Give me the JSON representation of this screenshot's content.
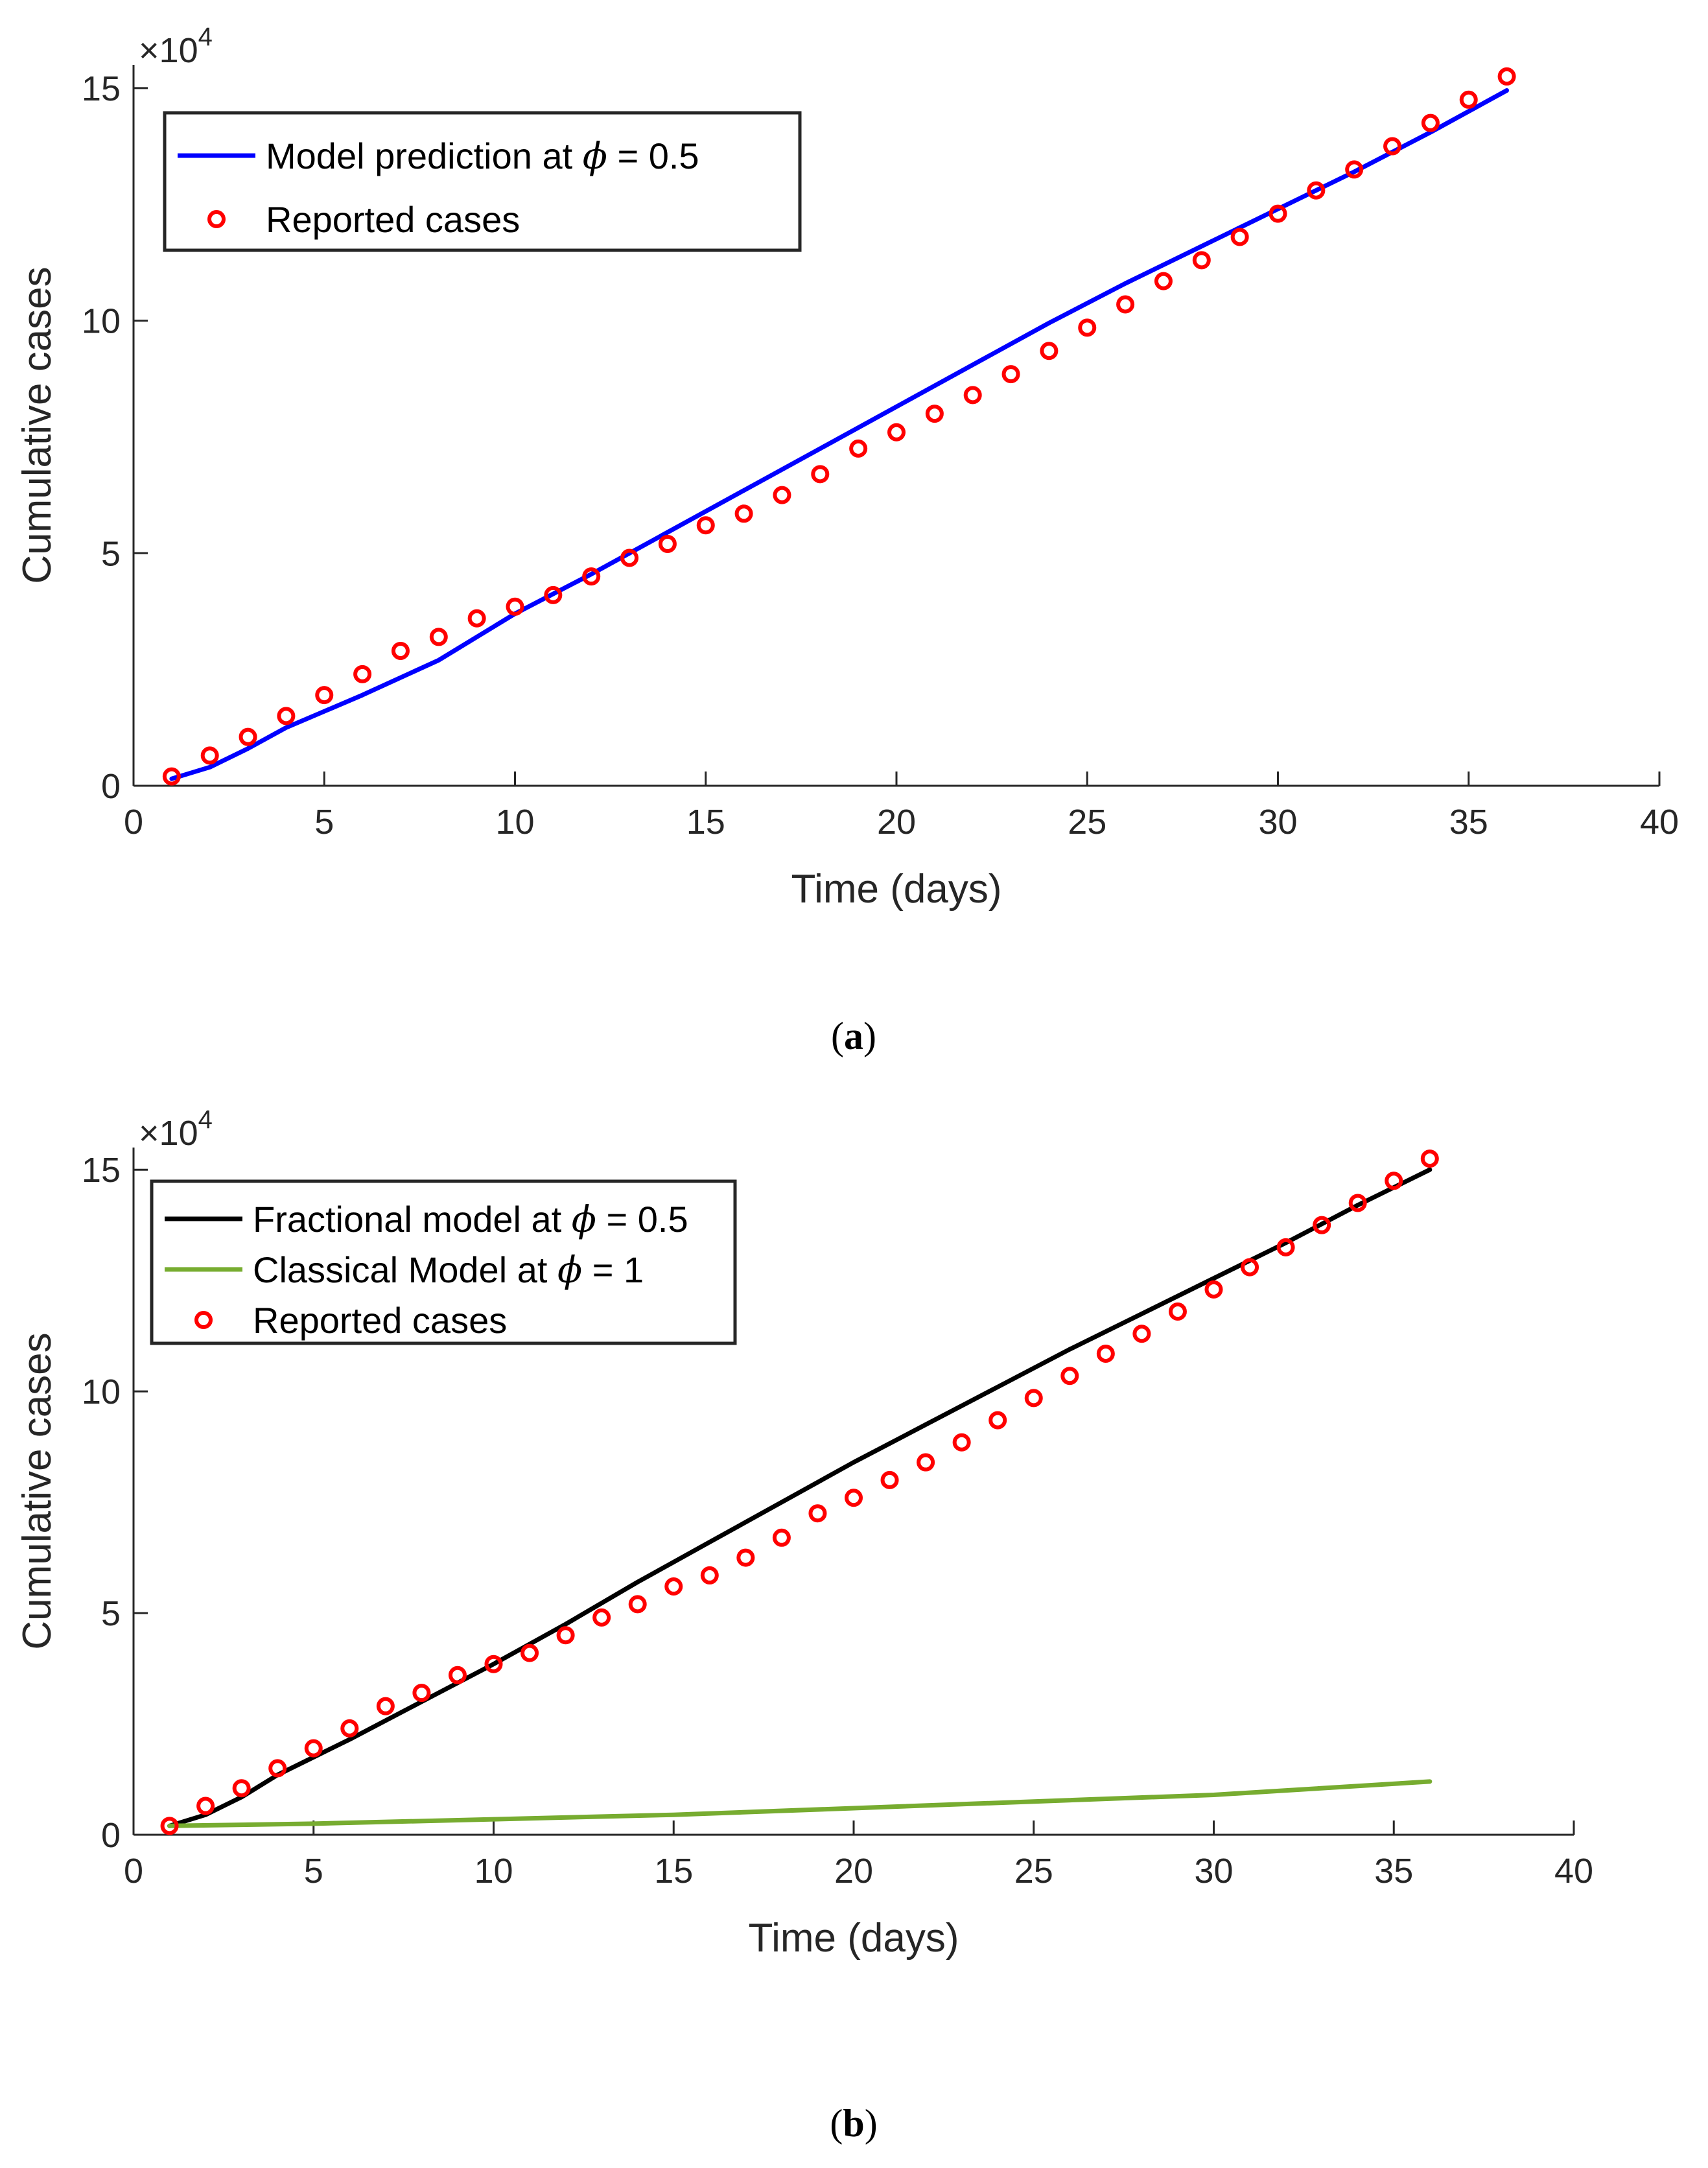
{
  "figure": {
    "panels": [
      "(a)",
      "(b)"
    ]
  },
  "chart_data": [
    {
      "type": "line",
      "panel_label_prefix": "(",
      "panel_letter": "a",
      "panel_label_suffix": ")",
      "xlabel": "Time (days)",
      "ylabel": "Cumulative cases",
      "xlim": [
        0,
        40
      ],
      "ylim": [
        0,
        15.5
      ],
      "y_multiplier": "×10",
      "y_multiplier_exp": "4",
      "x_ticks": [
        0,
        5,
        10,
        15,
        20,
        25,
        30,
        35,
        40
      ],
      "y_ticks": [
        0,
        5,
        10,
        15
      ],
      "legend_position": "top-left",
      "series": [
        {
          "name": "Model prediction at ϕ = 0.5",
          "legend_prefix": "Model prediction at ",
          "legend_symbol": "ϕ",
          "legend_suffix": " = 0.5",
          "kind": "line",
          "color": "#0000ff",
          "x": [
            1,
            2,
            3,
            4,
            5,
            6,
            8,
            10,
            12,
            14,
            16,
            18,
            20,
            22,
            24,
            26,
            28,
            30,
            32,
            34,
            36
          ],
          "y": [
            0.15,
            0.4,
            0.8,
            1.25,
            1.6,
            1.95,
            2.7,
            3.7,
            4.55,
            5.45,
            6.35,
            7.25,
            8.15,
            9.05,
            9.95,
            10.8,
            11.6,
            12.4,
            13.2,
            14.05,
            14.95
          ]
        },
        {
          "name": "Reported cases",
          "legend_prefix": "Reported cases",
          "legend_symbol": "",
          "legend_suffix": "",
          "kind": "scatter",
          "color": "#ff0000",
          "x": [
            1,
            2,
            3,
            4,
            5,
            6,
            7,
            8,
            9,
            10,
            11,
            12,
            13,
            14,
            15,
            16,
            17,
            18,
            19,
            20,
            21,
            22,
            23,
            24,
            25,
            26,
            27,
            28,
            29,
            30,
            31,
            32,
            33,
            34,
            35,
            36
          ],
          "y": [
            0.2,
            0.65,
            1.05,
            1.5,
            1.95,
            2.4,
            2.9,
            3.2,
            3.6,
            3.85,
            4.1,
            4.5,
            4.9,
            5.2,
            5.6,
            5.85,
            6.25,
            6.7,
            7.25,
            7.6,
            8.0,
            8.4,
            8.85,
            9.35,
            9.85,
            10.35,
            10.85,
            11.3,
            11.8,
            12.3,
            12.8,
            13.25,
            13.75,
            14.25,
            14.75,
            15.25
          ]
        }
      ]
    },
    {
      "type": "line",
      "panel_label_prefix": "(",
      "panel_letter": "b",
      "panel_label_suffix": ")",
      "xlabel": "Time (days)",
      "ylabel": "Cumulative cases",
      "xlim": [
        0,
        40
      ],
      "ylim": [
        0,
        15.5
      ],
      "y_multiplier": "×10",
      "y_multiplier_exp": "4",
      "x_ticks": [
        0,
        5,
        10,
        15,
        20,
        25,
        30,
        35,
        40
      ],
      "y_ticks": [
        0,
        5,
        10,
        15
      ],
      "legend_position": "top-left",
      "series": [
        {
          "name": "Fractional model at ϕ = 0.5",
          "legend_prefix": "Fractional model at ",
          "legend_symbol": "ϕ",
          "legend_suffix": " = 0.5",
          "kind": "line",
          "color": "#000000",
          "x": [
            1,
            2,
            3,
            4,
            5,
            6,
            8,
            10,
            12,
            14,
            16,
            18,
            20,
            22,
            24,
            26,
            28,
            30,
            32,
            34,
            36
          ],
          "y": [
            0.2,
            0.45,
            0.85,
            1.35,
            1.75,
            2.15,
            3.0,
            3.85,
            4.75,
            5.7,
            6.6,
            7.5,
            8.4,
            9.25,
            10.1,
            10.95,
            11.75,
            12.55,
            13.35,
            14.2,
            15.0
          ]
        },
        {
          "name": "Classical Model at ϕ = 1",
          "legend_prefix": "Classical Model at ",
          "legend_symbol": "ϕ",
          "legend_suffix": " = 1",
          "kind": "line",
          "color": "#77ac30",
          "x": [
            1,
            5,
            10,
            15,
            20,
            25,
            30,
            36
          ],
          "y": [
            0.2,
            0.25,
            0.35,
            0.45,
            0.6,
            0.75,
            0.9,
            1.2
          ]
        },
        {
          "name": "Reported cases",
          "legend_prefix": "Reported cases",
          "legend_symbol": "",
          "legend_suffix": "",
          "kind": "scatter",
          "color": "#ff0000",
          "x": [
            1,
            2,
            3,
            4,
            5,
            6,
            7,
            8,
            9,
            10,
            11,
            12,
            13,
            14,
            15,
            16,
            17,
            18,
            19,
            20,
            21,
            22,
            23,
            24,
            25,
            26,
            27,
            28,
            29,
            30,
            31,
            32,
            33,
            34,
            35,
            36
          ],
          "y": [
            0.2,
            0.65,
            1.05,
            1.5,
            1.95,
            2.4,
            2.9,
            3.2,
            3.6,
            3.85,
            4.1,
            4.5,
            4.9,
            5.2,
            5.6,
            5.85,
            6.25,
            6.7,
            7.25,
            7.6,
            8.0,
            8.4,
            8.85,
            9.35,
            9.85,
            10.35,
            10.85,
            11.3,
            11.8,
            12.3,
            12.8,
            13.25,
            13.75,
            14.25,
            14.75,
            15.25
          ]
        }
      ]
    }
  ]
}
